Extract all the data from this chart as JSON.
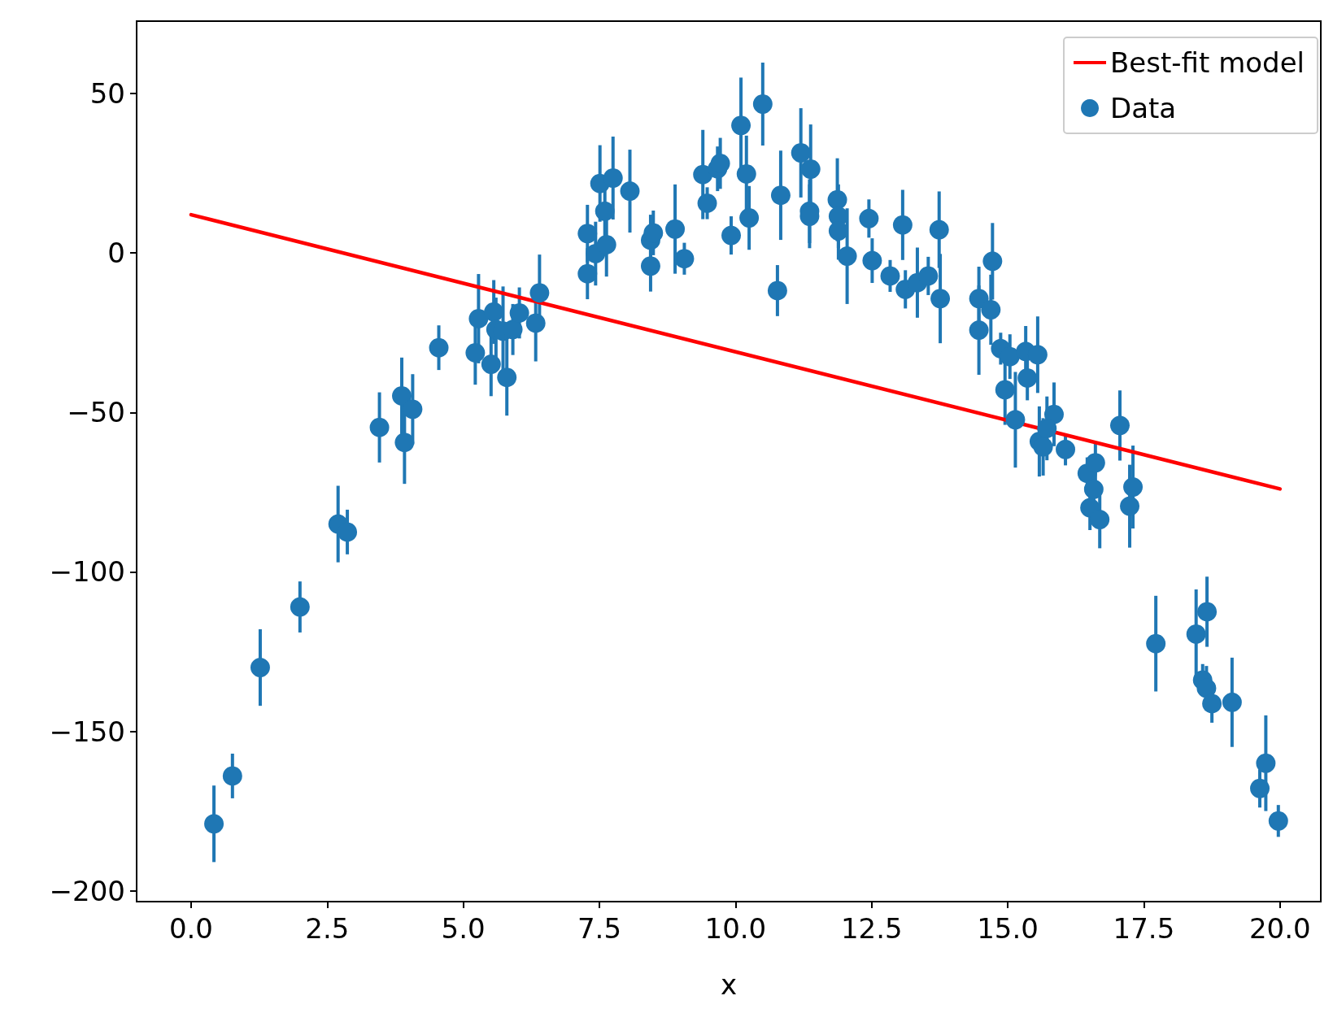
{
  "chart_data": {
    "type": "scatter",
    "xlabel": "x",
    "xlim": [
      -1,
      20.75
    ],
    "xticks": [
      {
        "value": 0,
        "label": "0.0"
      },
      2.5,
      {
        "value": 5,
        "label": "5.0"
      },
      7.5,
      {
        "value": 10,
        "label": "10.0"
      },
      12.5,
      {
        "value": 15,
        "label": "15.0"
      },
      17.5,
      {
        "value": 20,
        "label": "20.0"
      }
    ],
    "ylim": [
      -203.4,
      72.7
    ],
    "yticks": [
      -200,
      -150,
      -100,
      -50,
      0,
      50
    ],
    "legend": "top right",
    "series": [
      {
        "name": "Best-fit model",
        "type": "line",
        "color": "#ff0000",
        "marker": "none",
        "line_style": "solid",
        "x": [
          0,
          20
        ],
        "values": [
          12,
          -74
        ]
      },
      {
        "name": "Data",
        "color": "#1f77b4",
        "marker": "circle",
        "x": [
          0.42,
          0.76,
          1.27,
          2.0,
          2.7,
          2.87,
          3.46,
          3.87,
          3.92,
          4.07,
          4.55,
          5.22,
          5.28,
          5.51,
          5.56,
          5.6,
          5.73,
          5.8,
          5.91,
          6.03,
          6.33,
          6.4,
          7.28,
          7.28,
          7.43,
          7.51,
          7.6,
          7.63,
          7.75,
          8.06,
          8.44,
          8.49,
          8.44,
          8.89,
          9.06,
          9.4,
          9.48,
          9.67,
          9.72,
          9.92,
          10.1,
          10.2,
          10.25,
          10.5,
          10.77,
          10.83,
          11.2,
          11.38,
          11.36,
          11.36,
          11.87,
          11.89,
          11.89,
          12.05,
          12.45,
          12.51,
          12.84,
          13.07,
          13.12,
          13.34,
          13.54,
          13.74,
          13.76,
          14.47,
          14.72,
          14.69,
          14.47,
          14.87,
          15.04,
          15.33,
          15.55,
          15.36,
          14.95,
          15.14,
          15.85,
          15.58,
          15.65,
          15.72,
          16.06,
          16.46,
          16.61,
          16.58,
          16.51,
          16.69,
          17.06,
          17.3,
          17.24,
          17.72,
          18.46,
          18.66,
          18.58,
          18.65,
          18.75,
          19.12,
          19.74,
          19.63,
          19.97
        ],
        "values": [
          -179,
          -164,
          -130,
          -111,
          -85,
          -87.5,
          -54.7,
          -44.8,
          -59.4,
          -49,
          -29.7,
          -31.3,
          -20.6,
          -34.9,
          -18.5,
          -24,
          -24.5,
          -39,
          -24,
          -18.8,
          -22,
          -12.5,
          6.1,
          -6.5,
          -0.2,
          21.8,
          13.1,
          2.6,
          23.5,
          19.4,
          4,
          6.3,
          -4.1,
          7.5,
          -1.8,
          24.6,
          15.6,
          26.4,
          28.1,
          5.5,
          40,
          24.8,
          11,
          46.7,
          -11.8,
          18.1,
          31.4,
          26.3,
          13.1,
          11.5,
          16.7,
          11.5,
          6.9,
          -1,
          10.8,
          -2.4,
          -7.2,
          8.8,
          -11.4,
          -9.3,
          -7.2,
          7.3,
          -14.3,
          -14.3,
          -2.6,
          -17.8,
          -24.2,
          -30,
          -32.5,
          -30.9,
          -31.9,
          -39.2,
          -42.9,
          -52.3,
          -50.6,
          -59.1,
          -60.8,
          -55,
          -61.6,
          -69.1,
          -65.8,
          -74.1,
          -79.9,
          -83.6,
          -54.1,
          -73.4,
          -79.4,
          -122.5,
          -119.5,
          -112.5,
          -133.9,
          -136.5,
          -141.3,
          -140.9,
          -160,
          -167.9,
          -178.1
        ],
        "errors": [
          12,
          7,
          12,
          8,
          12,
          7,
          11,
          12,
          13,
          11,
          7,
          10,
          14,
          10,
          10,
          10,
          14,
          12,
          8,
          8,
          12,
          12,
          9,
          8,
          10,
          12,
          9,
          10,
          13,
          13,
          8,
          7,
          8,
          14,
          5,
          14,
          5,
          7,
          8,
          6,
          15,
          12,
          10,
          13,
          8,
          14,
          14,
          14,
          10,
          10,
          13,
          10,
          9,
          15,
          6,
          7,
          5,
          11,
          6,
          11,
          6,
          12,
          14,
          10,
          12,
          11,
          14,
          5,
          7,
          8,
          12,
          7,
          11,
          15,
          10,
          11,
          9,
          10,
          5,
          5,
          6,
          7,
          7,
          9,
          11,
          13,
          13,
          15,
          14,
          11,
          5,
          7,
          6,
          14,
          15,
          6,
          5
        ]
      }
    ]
  }
}
